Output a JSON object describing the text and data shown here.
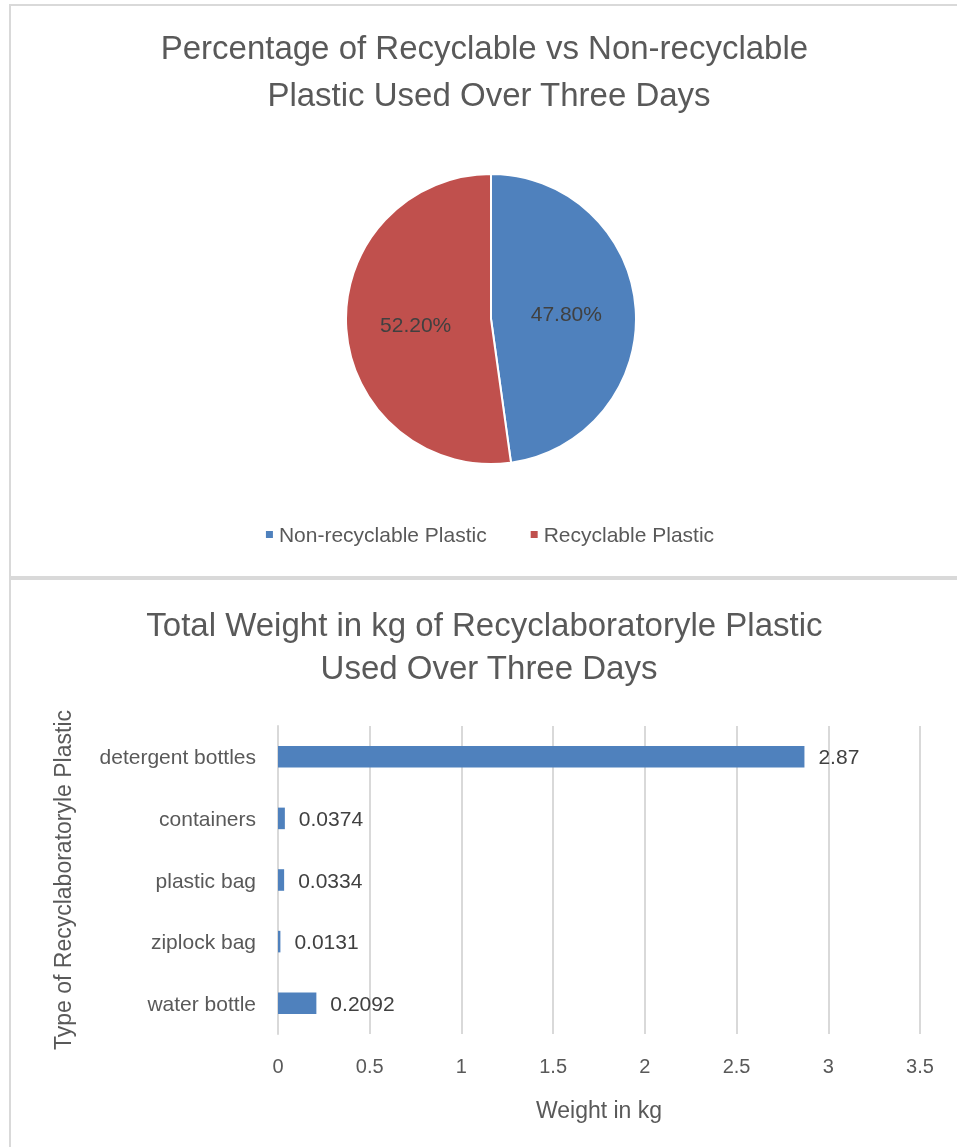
{
  "chart_data": [
    {
      "type": "pie",
      "title": "Percentage of Recyclable vs Non-recyclable Plastic Used Over Three Days",
      "categories": [
        "Non-recyclable Plastic",
        "Recyclable Plastic"
      ],
      "values": [
        47.8,
        52.2
      ],
      "colors": [
        "#4f81bd",
        "#c0504d"
      ],
      "value_labels": [
        "47.80%",
        "52.20%"
      ],
      "legend": "bottom"
    },
    {
      "type": "bar",
      "orientation": "horizontal",
      "title": "Total Weight in kg of Recyclaboratoryle Plastic Used Over Three Days",
      "categories": [
        "detergent bottles",
        "containers",
        "plastic bag",
        "ziplock bag",
        "water bottle"
      ],
      "values": [
        2.87,
        0.0374,
        0.0334,
        0.0131,
        0.2092
      ],
      "color": "#4f81bd",
      "data_labels": true,
      "xlabel": "Weight in kg",
      "ylabel": "Type of Recyclaboratoryle Plastic",
      "xlim": [
        0,
        3.5
      ],
      "xticks": [
        0,
        0.5,
        1,
        1.5,
        2,
        2.5,
        3,
        3.5
      ],
      "grid": "x",
      "legend": false
    }
  ]
}
